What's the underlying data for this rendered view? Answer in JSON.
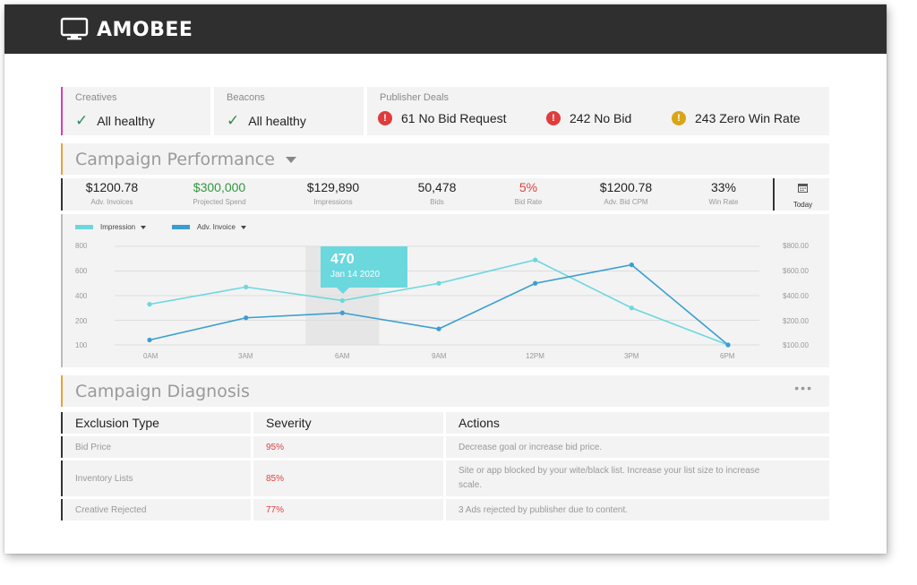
{
  "app": {
    "brand": "AMOBEE"
  },
  "status": {
    "creatives": {
      "title": "Creatives",
      "value": "All healthy"
    },
    "beacons": {
      "title": "Beacons",
      "value": "All healthy"
    },
    "publisher_deals": {
      "title": "Publisher Deals",
      "alerts": [
        {
          "text": "61 No Bid Request",
          "color": "#e03c3c"
        },
        {
          "text": "242 No Bid",
          "color": "#e03c3c"
        },
        {
          "text": "243 Zero Win Rate",
          "color": "#d9a514"
        }
      ]
    }
  },
  "performance": {
    "title": "Campaign Performance",
    "metrics": [
      {
        "value": "$1200.78",
        "label": "Adv. Invoices",
        "color": "#222222"
      },
      {
        "value": "$300,000",
        "label": "Projected Spend",
        "color": "#2e9a3e"
      },
      {
        "value": "$129,890",
        "label": "Impressions",
        "color": "#222222"
      },
      {
        "value": "50,478",
        "label": "Bids",
        "color": "#222222"
      },
      {
        "value": "5%",
        "label": "Bid Rate",
        "color": "#e04040"
      },
      {
        "value": "$1200.78",
        "label": "Adv. Bid CPM",
        "color": "#222222"
      },
      {
        "value": "33%",
        "label": "Win Rate",
        "color": "#222222"
      }
    ],
    "today_label": "Today"
  },
  "chart_data": {
    "type": "line",
    "x": [
      "0AM",
      "3AM",
      "6AM",
      "9AM",
      "12PM",
      "3PM",
      "6PM"
    ],
    "y_ticks": [
      "800",
      "600",
      "400",
      "200",
      "100"
    ],
    "y2_ticks": [
      "$800.00",
      "$600.00",
      "$400.00",
      "$200.00",
      "$100.00"
    ],
    "series": [
      {
        "name": "Impression",
        "color": "#6bd8de",
        "values": [
          330,
          470,
          360,
          500,
          690,
          300,
          0
        ]
      },
      {
        "name": "Adv. Invoice",
        "color": "#3a9ed2",
        "values": [
          40,
          220,
          260,
          130,
          500,
          650,
          0
        ]
      }
    ],
    "highlight": {
      "index": 2,
      "value": "470",
      "date": "Jan 14 2020"
    }
  },
  "diagnosis": {
    "title": "Campaign Diagnosis",
    "more": "•••",
    "columns": [
      "Exclusion Type",
      "Severity",
      "Actions"
    ],
    "rows": [
      {
        "type": "Bid Price",
        "severity": "95%",
        "action": "Decrease goal or increase bid price."
      },
      {
        "type": "Inventory Lists",
        "severity": "85%",
        "action": "Site or app blocked by your wite/black list. Increase your list size to increase scale."
      },
      {
        "type": "Creative Rejected",
        "severity": "77%",
        "action": "3 Ads rejected by publisher due to content."
      }
    ]
  }
}
